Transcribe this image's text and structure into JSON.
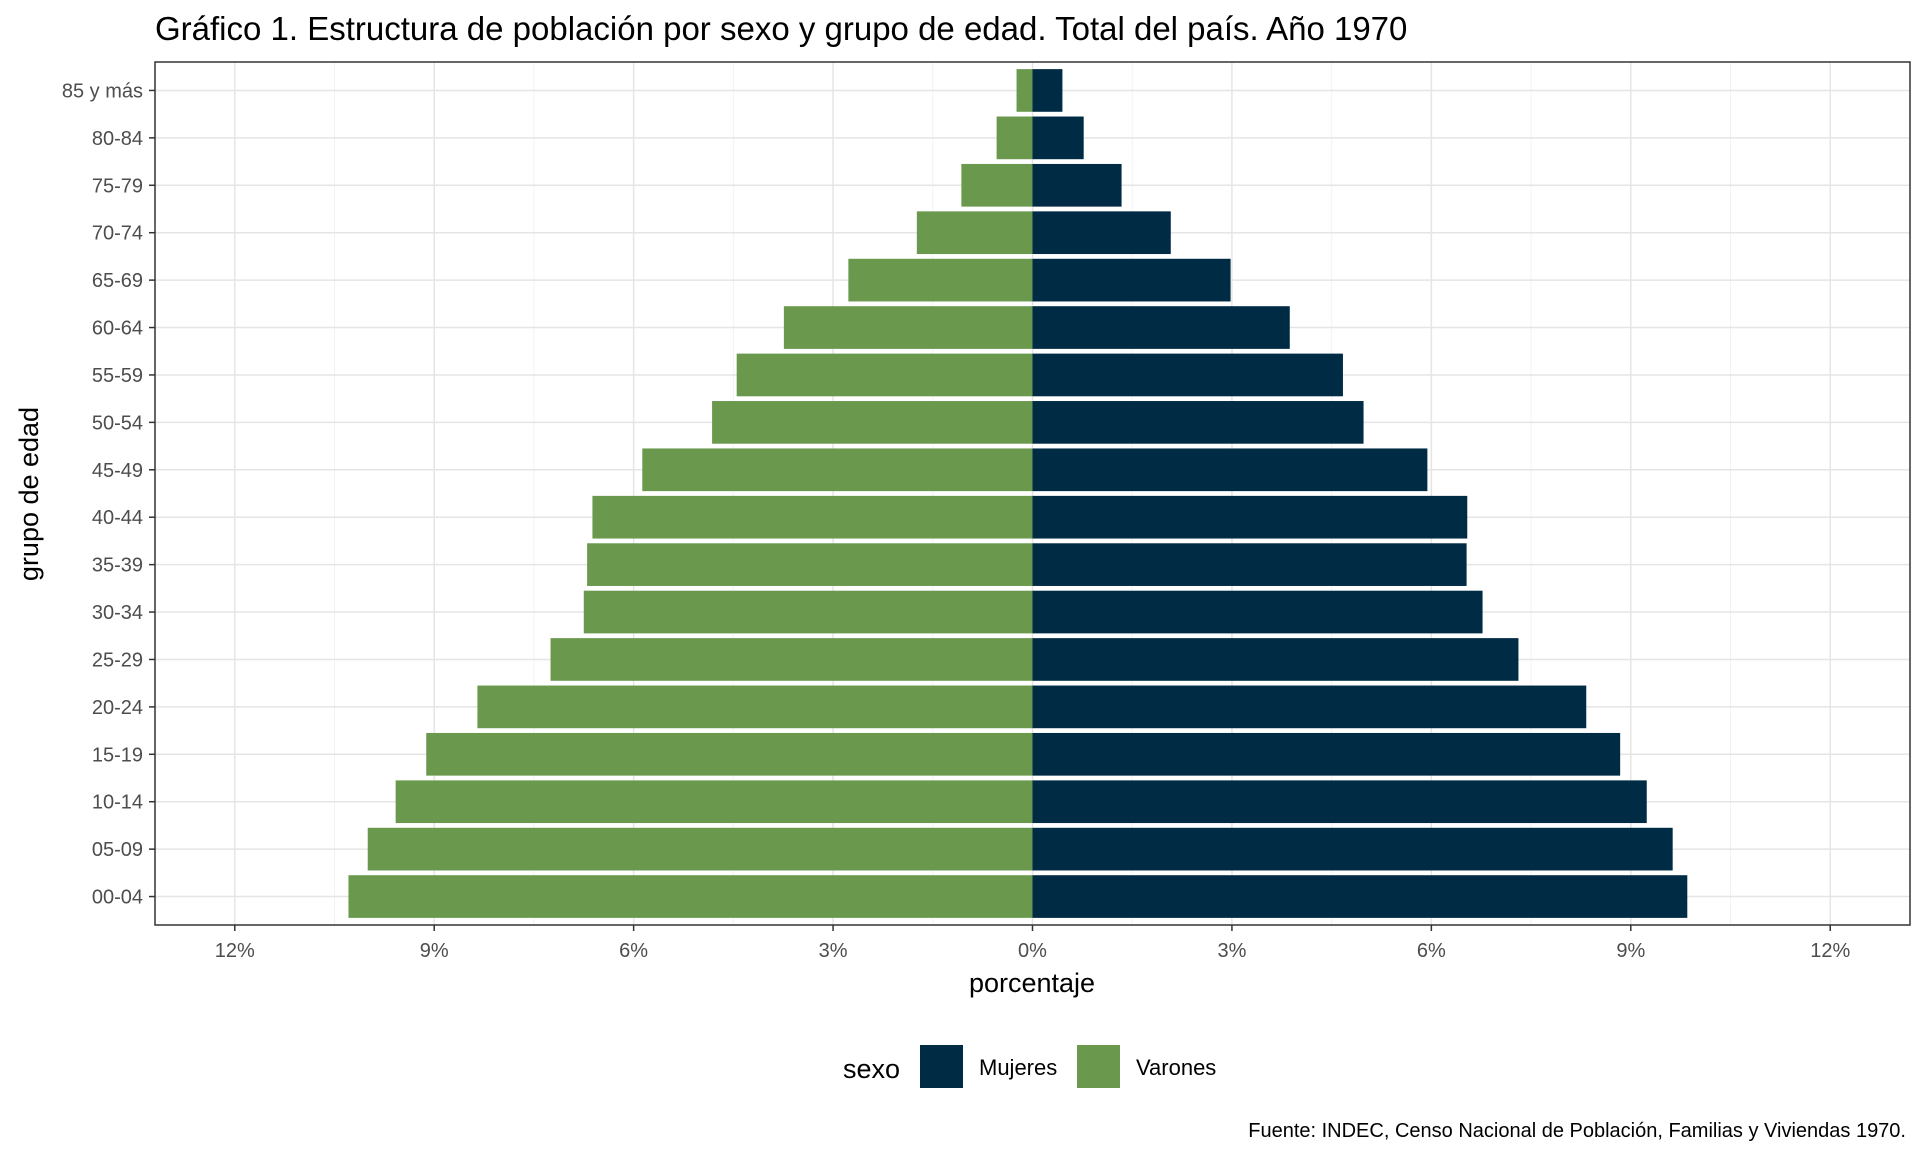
{
  "chart_data": {
    "type": "bar",
    "orientation": "horizontal",
    "title": "Gráfico 1. Estructura de población por sexo y grupo de edad. Total del país. Año 1970",
    "xlabel": "porcentaje",
    "ylabel": "grupo de edad",
    "categories": [
      "00-04",
      "05-09",
      "10-14",
      "15-19",
      "20-24",
      "25-29",
      "30-34",
      "35-39",
      "40-44",
      "45-49",
      "50-54",
      "55-59",
      "60-64",
      "65-69",
      "70-74",
      "75-79",
      "80-84",
      "85 y más"
    ],
    "xlim": [
      -13.2,
      13.2
    ],
    "xticks": [
      -12,
      -9,
      -6,
      -3,
      0,
      3,
      6,
      9,
      12
    ],
    "xtick_labels": [
      "12%",
      "9%",
      "6%",
      "3%",
      "0%",
      "3%",
      "6%",
      "9%",
      "12%"
    ],
    "grid": true,
    "legend": {
      "title": "sexo",
      "position": "bottom"
    },
    "series": [
      {
        "name": "Mujeres",
        "color": "#002b45",
        "values": [
          9.85,
          9.63,
          9.24,
          8.84,
          8.33,
          7.31,
          6.77,
          6.53,
          6.54,
          5.94,
          4.98,
          4.67,
          3.87,
          2.98,
          2.08,
          1.34,
          0.77,
          0.45
        ]
      },
      {
        "name": "Varones",
        "color": "#6a994e",
        "values": [
          10.29,
          10.0,
          9.58,
          9.12,
          8.35,
          7.25,
          6.75,
          6.7,
          6.62,
          5.87,
          4.82,
          4.45,
          3.74,
          2.77,
          1.74,
          1.07,
          0.54,
          0.24
        ]
      }
    ],
    "caption": "Fuente: INDEC, Censo Nacional de Población, Familias y Viviendas 1970."
  }
}
